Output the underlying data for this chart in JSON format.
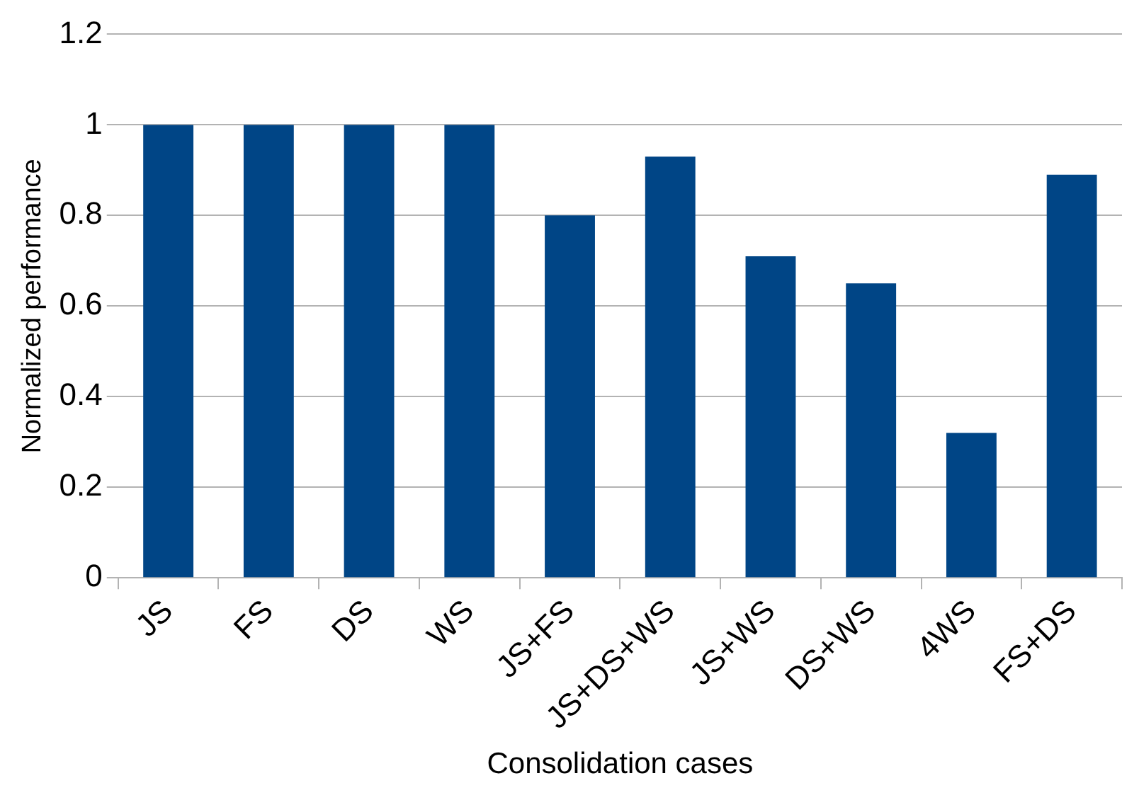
{
  "chart_data": {
    "type": "bar",
    "xlabel": "Consolidation cases",
    "ylabel": "Normalized performance",
    "categories": [
      "JS",
      "FS",
      "DS",
      "WS",
      "JS+FS",
      "JS+DS+WS",
      "JS+WS",
      "DS+WS",
      "4WS",
      "FS+DS"
    ],
    "values": [
      1,
      1,
      1,
      1,
      0.8,
      0.93,
      0.71,
      0.65,
      0.32,
      0.89
    ],
    "color": "#004586",
    "ylim": [
      0,
      1.2
    ],
    "yticks": [
      0,
      0.2,
      0.4,
      0.6,
      0.8,
      1,
      1.2
    ],
    "grid": "y",
    "legend": false
  }
}
